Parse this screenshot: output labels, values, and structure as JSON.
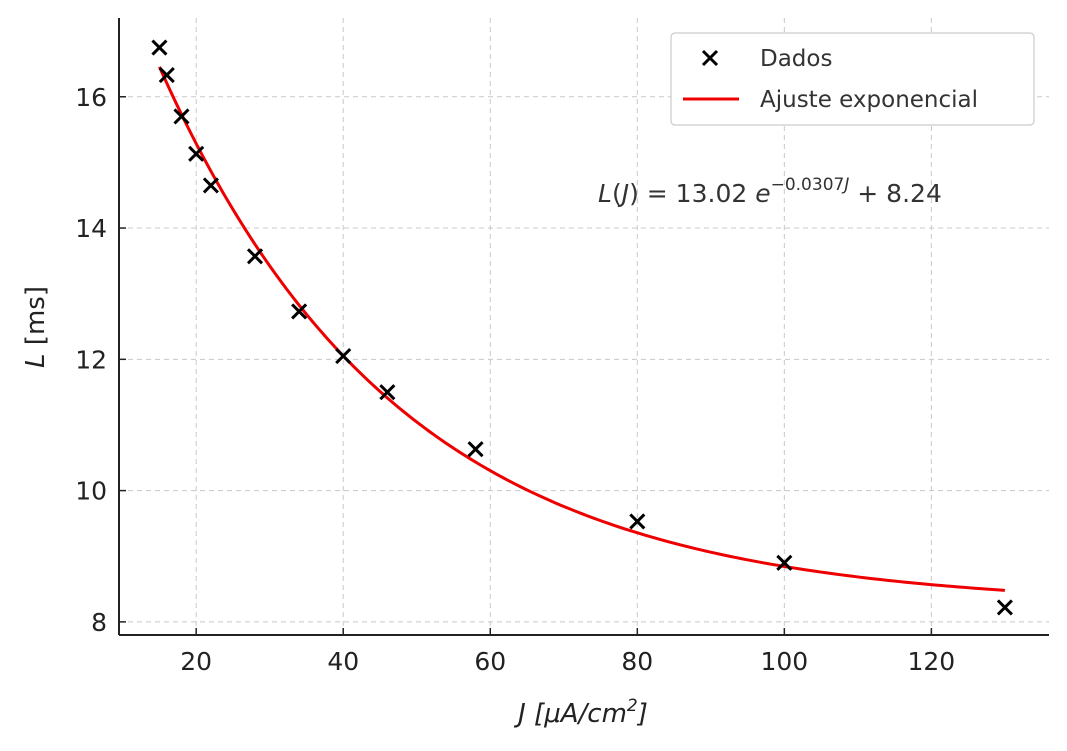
{
  "chart_data": {
    "type": "scatter",
    "xlabel_var": "J",
    "xlabel_units": "[μA/cm",
    "xlabel_sup": "2",
    "xlabel_close": "]",
    "ylabel_var": "L",
    "ylabel_units": "[ms]",
    "xlim": [
      9.5,
      136
    ],
    "ylim": [
      7.8,
      17.2
    ],
    "xticks": [
      20,
      40,
      60,
      80,
      100,
      120
    ],
    "yticks": [
      8,
      10,
      12,
      14,
      16
    ],
    "grid": true,
    "legend_position": "top-right",
    "series": [
      {
        "name": "Dados",
        "kind": "scatter",
        "marker": "x",
        "color": "#000000",
        "x": [
          15,
          16,
          18,
          20,
          22,
          28,
          34,
          40,
          46,
          58,
          80,
          100,
          130
        ],
        "y": [
          16.75,
          16.33,
          15.7,
          15.13,
          14.65,
          13.57,
          12.73,
          12.05,
          11.5,
          10.63,
          9.53,
          8.9,
          8.22
        ]
      },
      {
        "name": "Ajuste exponencial",
        "kind": "line",
        "color": "#ee0000",
        "model": {
          "a": 13.02,
          "b": -0.0307,
          "c": 8.24,
          "x_start": 15,
          "x_end": 130
        }
      }
    ],
    "annotation": {
      "lhs_var": "L",
      "lhs_arg": "J",
      "mid": " = 13.02 ",
      "base": "e",
      "exp_num": "−0.0307",
      "exp_var": "J",
      "tail": " + 8.24"
    }
  }
}
